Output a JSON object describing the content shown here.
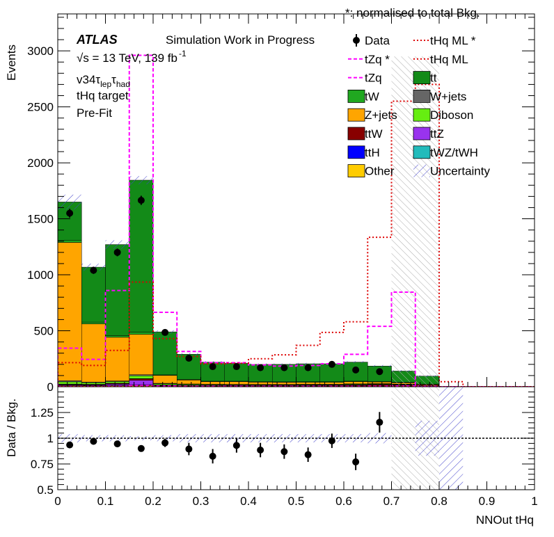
{
  "header": {
    "note": "*: normalised to total Bkg."
  },
  "annotations": {
    "atlas": "ATLAS",
    "status": "Simulation Work in Progress",
    "energy": "√s = 13 TeV, 139 fb",
    "energy_sup": "-1",
    "channel_prefix": "v34τ",
    "channel_sub1": "lep",
    "channel_mid": "τ",
    "channel_sub2": "had",
    "target": "tHq target",
    "fit": "Pre-Fit"
  },
  "colors": {
    "tt": "#138a18",
    "tW": "#20a820",
    "Z+jets": "#ffa500",
    "W+jets": "#666666",
    "Diboson": "#66ee11",
    "ttW": "#880000",
    "ttZ": "#9933ee",
    "ttH": "#0000ff",
    "tWZ/tWH": "#22bbbb",
    "Other": "#ffcc00",
    "Data": "#000000",
    "tZq": "#ff00ff",
    "tHq": "#dd0000",
    "unc_total": "#4444cc",
    "unc_overflow": "#999999"
  },
  "chart_data": [
    {
      "type": "bar",
      "subtype": "stacked-histogram",
      "ylabel": "Events",
      "xlim": [
        0,
        1
      ],
      "ylim": [
        0,
        3330
      ],
      "yticks": [
        0,
        500,
        1000,
        1500,
        2000,
        2500,
        3000
      ],
      "bin_edges": [
        0,
        0.05,
        0.1,
        0.15,
        0.2,
        0.25,
        0.3,
        0.35,
        0.4,
        0.45,
        0.5,
        0.55,
        0.6,
        0.65,
        0.7,
        0.75,
        0.8,
        0.85,
        0.9,
        0.95,
        1.0
      ],
      "stack_order": [
        "Other",
        "ttH",
        "ttZ",
        "ttW",
        "tWZ/tWH",
        "Diboson",
        "W+jets",
        "Z+jets",
        "tW",
        "tt"
      ],
      "series": [
        {
          "name": "Other",
          "values": [
            10,
            8,
            10,
            12,
            5,
            3,
            2,
            2,
            2,
            2,
            2,
            2,
            3,
            2,
            1,
            1,
            0,
            0,
            0,
            0
          ]
        },
        {
          "name": "ttH",
          "values": [
            3,
            3,
            4,
            6,
            2,
            2,
            2,
            2,
            2,
            2,
            2,
            2,
            3,
            3,
            2,
            1,
            0,
            0,
            0,
            0
          ]
        },
        {
          "name": "ttZ",
          "values": [
            5,
            5,
            10,
            40,
            3,
            3,
            3,
            3,
            3,
            3,
            3,
            3,
            4,
            4,
            3,
            2,
            0,
            0,
            0,
            0
          ]
        },
        {
          "name": "ttW",
          "values": [
            4,
            4,
            6,
            12,
            4,
            4,
            4,
            4,
            4,
            4,
            5,
            5,
            6,
            8,
            8,
            5,
            0,
            0,
            0,
            0
          ]
        },
        {
          "name": "tWZ/tWH",
          "values": [
            2,
            2,
            2,
            3,
            2,
            2,
            2,
            2,
            2,
            2,
            2,
            2,
            2,
            3,
            3,
            2,
            0,
            0,
            0,
            0
          ]
        },
        {
          "name": "Diboson",
          "values": [
            20,
            15,
            15,
            25,
            10,
            8,
            6,
            5,
            5,
            5,
            5,
            5,
            5,
            5,
            4,
            2,
            0,
            0,
            0,
            0
          ]
        },
        {
          "name": "W+jets",
          "values": [
            10,
            5,
            5,
            10,
            5,
            3,
            3,
            3,
            3,
            3,
            3,
            3,
            3,
            3,
            2,
            1,
            0,
            0,
            0,
            0
          ]
        },
        {
          "name": "Z+jets",
          "values": [
            1235,
            520,
            390,
            360,
            70,
            35,
            23,
            24,
            20,
            19,
            18,
            18,
            19,
            15,
            12,
            6,
            0,
            0,
            0,
            0
          ]
        },
        {
          "name": "tW",
          "values": [
            20,
            15,
            15,
            20,
            5,
            5,
            5,
            5,
            4,
            4,
            5,
            5,
            5,
            5,
            5,
            3,
            0,
            0,
            0,
            0
          ]
        },
        {
          "name": "tt",
          "values": [
            341,
            491,
            813,
            1357,
            384,
            225,
            170,
            160,
            155,
            156,
            160,
            160,
            170,
            137,
            100,
            72,
            0,
            0,
            0,
            0
          ]
        }
      ],
      "data_points": {
        "name": "Data",
        "x": [
          0.025,
          0.075,
          0.125,
          0.175,
          0.225,
          0.275,
          0.325,
          0.375,
          0.425,
          0.475,
          0.525,
          0.575,
          0.625,
          0.675
        ],
        "y": [
          1550,
          1040,
          1200,
          1665,
          485,
          255,
          180,
          180,
          170,
          170,
          170,
          200,
          150,
          135
        ]
      },
      "signal_lines": [
        {
          "name": "tZq *",
          "style": "dashed",
          "color": "#ff00ff",
          "values": [
            345,
            245,
            860,
            2960,
            665,
            315,
            215,
            215,
            195,
            185,
            190,
            205,
            290,
            540,
            845,
            0,
            0,
            0,
            0,
            0
          ]
        },
        {
          "name": "tZq",
          "style": "dashed",
          "color": "#ff00ff",
          "values": [
            2,
            2,
            4,
            10,
            6,
            4,
            4,
            4,
            4,
            4,
            4,
            4,
            4,
            5,
            6,
            4,
            0,
            0,
            0,
            0
          ]
        },
        {
          "name": "tHq ML *",
          "style": "dotted",
          "color": "#dd0000",
          "values": [
            215,
            190,
            325,
            935,
            430,
            270,
            205,
            210,
            250,
            285,
            370,
            485,
            580,
            1335,
            2550,
            2700,
            45,
            0,
            0,
            0
          ]
        },
        {
          "name": "tHq ML",
          "style": "dotted",
          "color": "#dd0000",
          "values": [
            1,
            1,
            1,
            2,
            1,
            1,
            1,
            1,
            1,
            1,
            1,
            1,
            2,
            2,
            3,
            3,
            0,
            0,
            0,
            0
          ]
        }
      ],
      "uncertainty_rel": [
        0.04,
        0.03,
        0.03,
        0.02,
        0.03,
        0.04,
        0.04,
        0.04,
        0.04,
        0.04,
        0.04,
        0.04,
        0.04,
        0.05,
        0.06,
        0.08
      ],
      "overflow_hatch": {
        "x_from": 0.7,
        "x_to": 0.8,
        "ymax": 2950
      }
    },
    {
      "type": "scatter",
      "xlabel": "NNOut tHq",
      "ylabel": "Data / Bkg.",
      "xlim": [
        0,
        1
      ],
      "ylim": [
        0.5,
        1.5
      ],
      "yticks": [
        0.5,
        0.75,
        1,
        1.25
      ],
      "xticks": [
        0,
        0.1,
        0.2,
        0.3,
        0.4,
        0.5,
        0.6,
        0.7,
        0.8,
        0.9,
        1
      ],
      "reference_line": 1,
      "x": [
        0.025,
        0.075,
        0.125,
        0.175,
        0.225,
        0.275,
        0.325,
        0.375,
        0.425,
        0.475,
        0.525,
        0.575,
        0.625,
        0.675
      ],
      "y": [
        0.935,
        0.97,
        0.945,
        0.9,
        0.955,
        0.895,
        0.825,
        0.93,
        0.885,
        0.87,
        0.84,
        0.975,
        0.77,
        1.155
      ],
      "yerr": [
        0.025,
        0.03,
        0.025,
        0.02,
        0.04,
        0.06,
        0.07,
        0.07,
        0.07,
        0.07,
        0.07,
        0.07,
        0.08,
        0.1
      ]
    }
  ],
  "legend": [
    {
      "key": "Data",
      "label": "Data",
      "kind": "marker"
    },
    {
      "key": "tHq ML *",
      "label": "tHq ML *",
      "kind": "dotted-line",
      "color": "#dd0000"
    },
    {
      "key": "tZq *",
      "label": "tZq *",
      "kind": "dashed-line",
      "color": "#ff00ff"
    },
    {
      "key": "tHq ML",
      "label": "tHq ML",
      "kind": "dotted-line",
      "color": "#dd0000"
    },
    {
      "key": "tZq",
      "label": "tZq",
      "kind": "dashed-line",
      "color": "#ff00ff"
    },
    {
      "key": "tt",
      "label": "tt",
      "kind": "box",
      "color": "#138a18"
    },
    {
      "key": "tW",
      "label": "tW",
      "kind": "box",
      "color": "#20a820"
    },
    {
      "key": "W+jets",
      "label": "W+jets",
      "kind": "box",
      "color": "#666666"
    },
    {
      "key": "Z+jets",
      "label": "Z+jets",
      "kind": "box",
      "color": "#ffa500"
    },
    {
      "key": "Diboson",
      "label": "Diboson",
      "kind": "box",
      "color": "#66ee11"
    },
    {
      "key": "ttW",
      "label": "ttW",
      "kind": "box",
      "color": "#880000"
    },
    {
      "key": "ttZ",
      "label": "ttZ",
      "kind": "box",
      "color": "#9933ee"
    },
    {
      "key": "ttH",
      "label": "ttH",
      "kind": "box",
      "color": "#0000ff"
    },
    {
      "key": "tWZ/tWH",
      "label": "tWZ/tWH",
      "kind": "box",
      "color": "#22bbbb"
    },
    {
      "key": "Other",
      "label": "Other",
      "kind": "box",
      "color": "#ffcc00"
    },
    {
      "key": "Uncertainty",
      "label": "Uncertainty",
      "kind": "hatch",
      "color": "#4444cc"
    }
  ]
}
